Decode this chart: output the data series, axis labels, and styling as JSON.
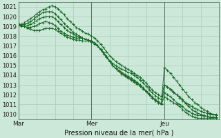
{
  "xlabel": "Pression niveau de la mer( hPa )",
  "bg_color": "#cce8d8",
  "grid_color": "#aaccbb",
  "line_color": "#1a6b2a",
  "x_ticks": [
    0,
    24,
    48
  ],
  "x_tick_labels": [
    "Mar",
    "Mer",
    "Jeu"
  ],
  "ylim": [
    1009.5,
    1021.5
  ],
  "xlim": [
    0,
    66
  ],
  "yticks": [
    1010,
    1011,
    1012,
    1013,
    1014,
    1015,
    1016,
    1017,
    1018,
    1019,
    1020,
    1021
  ],
  "vlines": [
    0,
    24,
    48
  ],
  "series_x": [
    0,
    1,
    2,
    3,
    4,
    5,
    6,
    7,
    8,
    9,
    10,
    11,
    12,
    13,
    14,
    15,
    16,
    17,
    18,
    19,
    20,
    21,
    22,
    23,
    24,
    25,
    26,
    27,
    28,
    29,
    30,
    31,
    32,
    33,
    34,
    35,
    36,
    37,
    38,
    39,
    40,
    41,
    42,
    43,
    44,
    45,
    46,
    47,
    48,
    49,
    50,
    51,
    52,
    53,
    54,
    55,
    56,
    57,
    58,
    59,
    60,
    61,
    62,
    63,
    64,
    65
  ],
  "series": [
    [
      1019.1,
      1019.2,
      1019.4,
      1019.6,
      1019.8,
      1020.0,
      1020.3,
      1020.5,
      1020.7,
      1020.8,
      1021.0,
      1021.1,
      1021.0,
      1020.8,
      1020.5,
      1020.2,
      1019.8,
      1019.5,
      1019.2,
      1018.9,
      1018.7,
      1018.5,
      1018.3,
      1018.2,
      1018.0,
      1017.8,
      1017.5,
      1017.2,
      1016.8,
      1016.4,
      1016.0,
      1015.7,
      1015.4,
      1015.2,
      1015.0,
      1014.8,
      1014.6,
      1014.4,
      1014.2,
      1014.0,
      1013.8,
      1013.5,
      1013.2,
      1012.8,
      1012.5,
      1012.2,
      1012.0,
      1011.8,
      1013.0,
      1012.8,
      1012.5,
      1012.2,
      1012.0,
      1011.8,
      1011.5,
      1011.2,
      1011.0,
      1010.8,
      1010.6,
      1010.5,
      1010.3,
      1010.2,
      1010.1,
      1010.0,
      1010.0,
      1010.0
    ],
    [
      1019.1,
      1019.1,
      1019.2,
      1019.3,
      1019.5,
      1019.7,
      1020.0,
      1020.2,
      1020.4,
      1020.5,
      1020.5,
      1020.5,
      1020.3,
      1020.0,
      1019.7,
      1019.3,
      1019.0,
      1018.7,
      1018.4,
      1018.2,
      1018.0,
      1017.8,
      1017.7,
      1017.6,
      1017.5,
      1017.3,
      1017.0,
      1016.7,
      1016.3,
      1015.9,
      1015.5,
      1015.2,
      1015.0,
      1014.8,
      1014.6,
      1014.5,
      1014.3,
      1014.2,
      1014.0,
      1013.8,
      1013.5,
      1013.2,
      1012.9,
      1012.5,
      1012.2,
      1011.9,
      1011.7,
      1011.5,
      1012.2,
      1012.0,
      1011.8,
      1011.5,
      1011.2,
      1011.0,
      1010.8,
      1010.5,
      1010.3,
      1010.1,
      1010.0,
      1009.9,
      1009.9,
      1009.8,
      1009.8,
      1009.7,
      1009.7,
      1009.7
    ],
    [
      1019.1,
      1019.0,
      1019.0,
      1019.1,
      1019.2,
      1019.4,
      1019.6,
      1019.8,
      1019.9,
      1020.0,
      1020.0,
      1020.0,
      1019.8,
      1019.5,
      1019.2,
      1018.9,
      1018.6,
      1018.4,
      1018.2,
      1018.0,
      1017.9,
      1017.8,
      1017.7,
      1017.6,
      1017.5,
      1017.3,
      1017.0,
      1016.6,
      1016.2,
      1015.8,
      1015.4,
      1015.0,
      1014.7,
      1014.5,
      1014.3,
      1014.1,
      1013.9,
      1013.7,
      1013.5,
      1013.3,
      1013.0,
      1012.7,
      1012.4,
      1012.0,
      1011.7,
      1011.4,
      1011.2,
      1011.0,
      1011.8,
      1011.6,
      1011.4,
      1011.2,
      1011.0,
      1010.8,
      1010.5,
      1010.2,
      1010.0,
      1009.8,
      1009.7,
      1009.6,
      1009.6,
      1009.6,
      1009.6,
      1009.6,
      1009.6,
      1009.6
    ],
    [
      1019.2,
      1019.1,
      1019.0,
      1018.9,
      1018.9,
      1019.0,
      1019.1,
      1019.3,
      1019.4,
      1019.5,
      1019.4,
      1019.3,
      1019.1,
      1018.8,
      1018.5,
      1018.3,
      1018.1,
      1018.0,
      1017.9,
      1017.8,
      1017.8,
      1017.8,
      1017.7,
      1017.6,
      1017.5,
      1017.3,
      1017.0,
      1016.7,
      1016.3,
      1015.9,
      1015.4,
      1015.0,
      1014.7,
      1014.4,
      1014.2,
      1014.0,
      1013.8,
      1013.6,
      1013.4,
      1013.2,
      1013.0,
      1012.7,
      1012.4,
      1012.1,
      1011.8,
      1011.5,
      1011.3,
      1011.1,
      1014.8,
      1014.5,
      1014.2,
      1013.8,
      1013.4,
      1013.0,
      1012.6,
      1012.2,
      1011.8,
      1011.5,
      1011.2,
      1011.0,
      1010.7,
      1010.5,
      1010.3,
      1010.1,
      1010.0,
      1009.9
    ],
    [
      1019.3,
      1019.1,
      1019.0,
      1018.8,
      1018.7,
      1018.6,
      1018.6,
      1018.6,
      1018.7,
      1018.8,
      1018.8,
      1018.8,
      1018.7,
      1018.5,
      1018.3,
      1018.1,
      1017.9,
      1017.8,
      1017.7,
      1017.6,
      1017.6,
      1017.5,
      1017.5,
      1017.5,
      1017.4,
      1017.2,
      1017.0,
      1016.7,
      1016.3,
      1015.9,
      1015.4,
      1015.0,
      1014.7,
      1014.4,
      1014.1,
      1013.9,
      1013.7,
      1013.5,
      1013.3,
      1013.1,
      1012.9,
      1012.6,
      1012.3,
      1012.0,
      1011.7,
      1011.4,
      1011.2,
      1011.0,
      1013.0,
      1012.8,
      1012.6,
      1012.3,
      1012.0,
      1011.7,
      1011.4,
      1011.1,
      1010.8,
      1010.5,
      1010.3,
      1010.1,
      1010.0,
      1009.9,
      1009.8,
      1009.7,
      1009.7,
      1009.7
    ]
  ]
}
